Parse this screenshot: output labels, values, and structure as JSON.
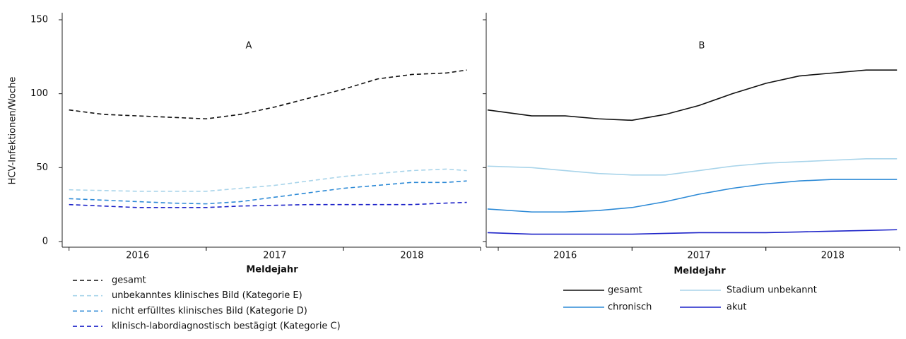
{
  "chart_data": [
    {
      "type": "line",
      "title": "A",
      "xlabel": "Meldejahr",
      "ylabel": "HCV-Infektionen/Woche",
      "x": [
        2016.0,
        2016.25,
        2016.5,
        2016.75,
        2017.0,
        2017.25,
        2017.5,
        2017.75,
        2018.0,
        2018.25,
        2018.5,
        2018.75,
        2018.9
      ],
      "xlim": [
        2015.95,
        2019.0
      ],
      "xticks": [
        {
          "value": 2016.5,
          "label": "2016"
        },
        {
          "value": 2017.5,
          "label": "2017"
        },
        {
          "value": 2018.5,
          "label": "2018"
        }
      ],
      "ylim": [
        0,
        150
      ],
      "yticks": [
        0,
        50,
        100,
        150
      ],
      "dashed": true,
      "series": [
        {
          "name": "gesamt",
          "color": "#111111",
          "values": [
            89,
            86,
            85,
            84,
            83,
            86,
            91,
            97,
            103,
            110,
            113,
            114,
            116
          ]
        },
        {
          "name": "unbekanntes klinisches Bild (Kategorie E)",
          "color": "#a8d4ea",
          "values": [
            35,
            34.5,
            34,
            34,
            34,
            36,
            38,
            41,
            44,
            46,
            48,
            49,
            48
          ]
        },
        {
          "name": "nicht erfülltes klinisches Bild (Kategorie D)",
          "color": "#2d8ad6",
          "values": [
            29,
            28,
            27,
            26,
            25.5,
            27,
            30,
            33,
            36,
            38,
            40,
            40,
            41
          ]
        },
        {
          "name": "klinisch-labordiagnostisch bestägigt (Kategorie C)",
          "color": "#1c22c8",
          "values": [
            25,
            24,
            23,
            23,
            23,
            24,
            24.5,
            25,
            25,
            25,
            25,
            26,
            26.5
          ]
        }
      ]
    },
    {
      "type": "line",
      "title": "B",
      "xlabel": "Meldejahr",
      "x": [
        2015.92,
        2016.25,
        2016.5,
        2016.75,
        2017.0,
        2017.25,
        2017.5,
        2017.75,
        2018.0,
        2018.25,
        2018.5,
        2018.75,
        2018.98
      ],
      "xlim": [
        2015.91,
        2019.0
      ],
      "xticks": [
        {
          "value": 2016.5,
          "label": "2016"
        },
        {
          "value": 2017.5,
          "label": "2017"
        },
        {
          "value": 2018.5,
          "label": "2018"
        }
      ],
      "ylim": [
        0,
        150
      ],
      "dashed": false,
      "series": [
        {
          "name": "gesamt",
          "color": "#111111",
          "values": [
            89,
            85,
            85,
            83,
            82,
            86,
            92,
            100,
            107,
            112,
            114,
            116,
            116
          ]
        },
        {
          "name": "Stadium unbekannt",
          "color": "#a8d4ea",
          "values": [
            51,
            50,
            48,
            46,
            45,
            45,
            48,
            51,
            53,
            54,
            55,
            56,
            56
          ]
        },
        {
          "name": "chronisch",
          "color": "#2d8ad6",
          "values": [
            22,
            20,
            20,
            21,
            23,
            27,
            32,
            36,
            39,
            41,
            42,
            42,
            42
          ]
        },
        {
          "name": "akut",
          "color": "#1c22c8",
          "values": [
            6,
            5,
            5,
            5,
            5,
            5.5,
            6,
            6,
            6,
            6.5,
            7,
            7.5,
            8
          ]
        }
      ]
    }
  ]
}
